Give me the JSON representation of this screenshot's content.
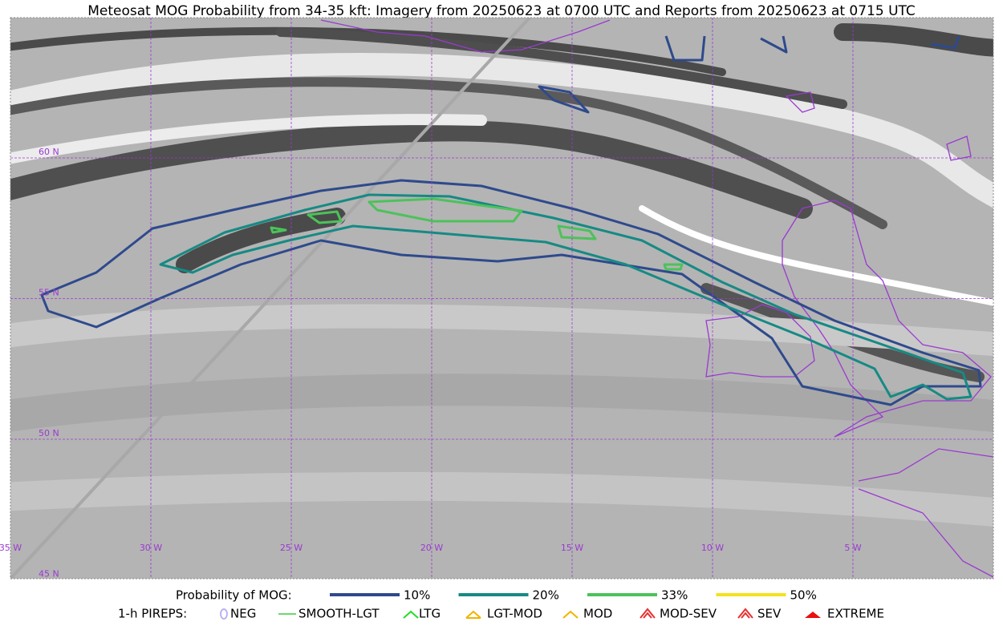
{
  "title": "Meteosat MOG Probability from 34-35 kft: Imagery from 20250623 at 0700 UTC and Reports from 20250623 at 0715 UTC",
  "map": {
    "lat_labels": [
      "60 N",
      "55 N",
      "50 N",
      "45 N"
    ],
    "lon_labels": [
      "35 W",
      "30 W",
      "25 W",
      "20 W",
      "15 W",
      "10 W",
      "5 W"
    ]
  },
  "legend": {
    "probability": {
      "label": "Probability of MOG:",
      "items": [
        {
          "label": "10%",
          "color": "#2e4a8c"
        },
        {
          "label": "20%",
          "color": "#168a84"
        },
        {
          "label": "33%",
          "color": "#4cc25a"
        },
        {
          "label": "50%",
          "color": "#f5e11c"
        }
      ]
    },
    "pireps": {
      "label": "1-h PIREPS:",
      "items": [
        {
          "label": "NEG",
          "color": "#b9b3f0"
        },
        {
          "label": "SMOOTH-LGT",
          "color": "#3ccc3c"
        },
        {
          "label": "LTG",
          "color": "#22dd22"
        },
        {
          "label": "LGT-MOD",
          "color": "#f0b400"
        },
        {
          "label": "MOD",
          "color": "#f0b400"
        },
        {
          "label": "MOD-SEV",
          "color": "#e83030"
        },
        {
          "label": "SEV",
          "color": "#e83030"
        },
        {
          "label": "EXTREME",
          "color": "#e81010"
        }
      ]
    }
  }
}
